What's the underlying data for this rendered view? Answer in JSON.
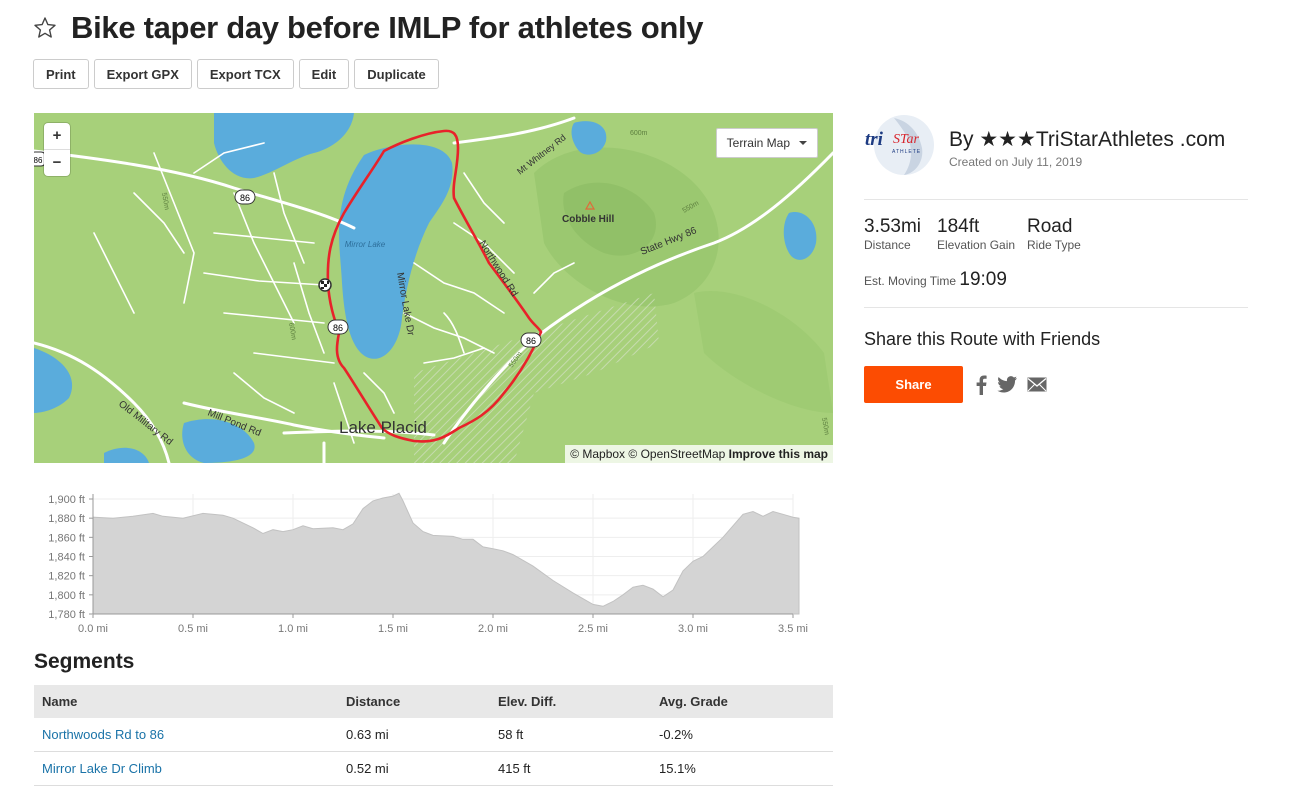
{
  "route": {
    "title": "Bike taper day before IMLP for athletes only"
  },
  "toolbar": {
    "print": "Print",
    "export_gpx": "Export GPX",
    "export_tcx": "Export TCX",
    "edit": "Edit",
    "duplicate": "Duplicate"
  },
  "map": {
    "zoom_in": "+",
    "zoom_out": "−",
    "map_type": "Terrain Map",
    "attribution_mapbox": "© Mapbox",
    "attribution_osm": "© OpenStreetMap",
    "improve": "Improve this map",
    "labels": {
      "lake_name": "Mirror Lake",
      "town": "Lake Placid",
      "hill": "Cobble Hill",
      "road_northwood": "Northwood Rd",
      "road_mirror_lake_dr": "Mirror Lake Dr",
      "road_state_hwy": "State Hwy 86",
      "road_mt_whitney": "Mt Whitney Rd",
      "road_old_military": "Old Military Rd",
      "road_mill_pond": "Mill Pond Rd",
      "shield_86": "86",
      "contour_550": "550m",
      "contour_600": "600m",
      "edge_86": "86"
    }
  },
  "elevation": {
    "y_ticks": [
      "1,900 ft",
      "1,880 ft",
      "1,860 ft",
      "1,840 ft",
      "1,820 ft",
      "1,800 ft",
      "1,780 ft"
    ],
    "x_ticks": [
      "0.0 mi",
      "0.5 mi",
      "1.0 mi",
      "1.5 mi",
      "2.0 mi",
      "2.5 mi",
      "3.0 mi",
      "3.5 mi"
    ],
    "profile_points": [
      [
        0,
        1881
      ],
      [
        0.1,
        1880
      ],
      [
        0.2,
        1882
      ],
      [
        0.3,
        1885
      ],
      [
        0.35,
        1882
      ],
      [
        0.45,
        1880
      ],
      [
        0.55,
        1885
      ],
      [
        0.65,
        1883
      ],
      [
        0.7,
        1880
      ],
      [
        0.8,
        1870
      ],
      [
        0.85,
        1864
      ],
      [
        0.9,
        1868
      ],
      [
        0.95,
        1866
      ],
      [
        1.0,
        1868
      ],
      [
        1.05,
        1872
      ],
      [
        1.1,
        1869
      ],
      [
        1.2,
        1870
      ],
      [
        1.25,
        1868
      ],
      [
        1.3,
        1874
      ],
      [
        1.35,
        1890
      ],
      [
        1.4,
        1898
      ],
      [
        1.45,
        1901
      ],
      [
        1.5,
        1903
      ],
      [
        1.53,
        1906
      ],
      [
        1.55,
        1898
      ],
      [
        1.6,
        1875
      ],
      [
        1.65,
        1866
      ],
      [
        1.7,
        1862
      ],
      [
        1.8,
        1861
      ],
      [
        1.85,
        1858
      ],
      [
        1.9,
        1858
      ],
      [
        1.95,
        1850
      ],
      [
        2.0,
        1848
      ],
      [
        2.05,
        1846
      ],
      [
        2.1,
        1842
      ],
      [
        2.2,
        1830
      ],
      [
        2.3,
        1815
      ],
      [
        2.4,
        1802
      ],
      [
        2.45,
        1796
      ],
      [
        2.5,
        1790
      ],
      [
        2.55,
        1788
      ],
      [
        2.6,
        1793
      ],
      [
        2.65,
        1800
      ],
      [
        2.7,
        1808
      ],
      [
        2.75,
        1810
      ],
      [
        2.8,
        1806
      ],
      [
        2.85,
        1798
      ],
      [
        2.9,
        1805
      ],
      [
        2.95,
        1825
      ],
      [
        3.0,
        1835
      ],
      [
        3.05,
        1840
      ],
      [
        3.1,
        1850
      ],
      [
        3.15,
        1860
      ],
      [
        3.2,
        1872
      ],
      [
        3.25,
        1884
      ],
      [
        3.3,
        1887
      ],
      [
        3.35,
        1882
      ],
      [
        3.4,
        1887
      ],
      [
        3.45,
        1884
      ],
      [
        3.5,
        1881
      ],
      [
        3.53,
        1880
      ]
    ]
  },
  "segments": {
    "title": "Segments",
    "headers": [
      "Name",
      "Distance",
      "Elev. Diff.",
      "Avg. Grade"
    ],
    "rows": [
      {
        "name": "Northwoods Rd to 86",
        "distance": "0.63 mi",
        "elev": "58 ft",
        "grade": "-0.2%"
      },
      {
        "name": "Mirror Lake Dr Climb",
        "distance": "0.52 mi",
        "elev": "415 ft",
        "grade": "15.1%"
      }
    ]
  },
  "author": {
    "name": "By ★★★TriStarAthletes .com",
    "created": "Created on July 11, 2019",
    "logo_text_1": "tri",
    "logo_text_2": "STar",
    "logo_text_3": "ATHLETE"
  },
  "stats": {
    "distance_value": "3.53mi",
    "distance_label": "Distance",
    "elevation_value": "184ft",
    "elevation_label": "Elevation Gain",
    "ride_value": "Road",
    "ride_label": "Ride Type",
    "moving_label": "Est. Moving Time",
    "moving_value": "19:09"
  },
  "share": {
    "title": "Share this Route with Friends",
    "button": "Share"
  },
  "colors": {
    "brand": "#fc4c02",
    "route": "#e8222a",
    "link": "#1a73a8",
    "water": "#5aacdc",
    "land": "#a7d07a"
  }
}
